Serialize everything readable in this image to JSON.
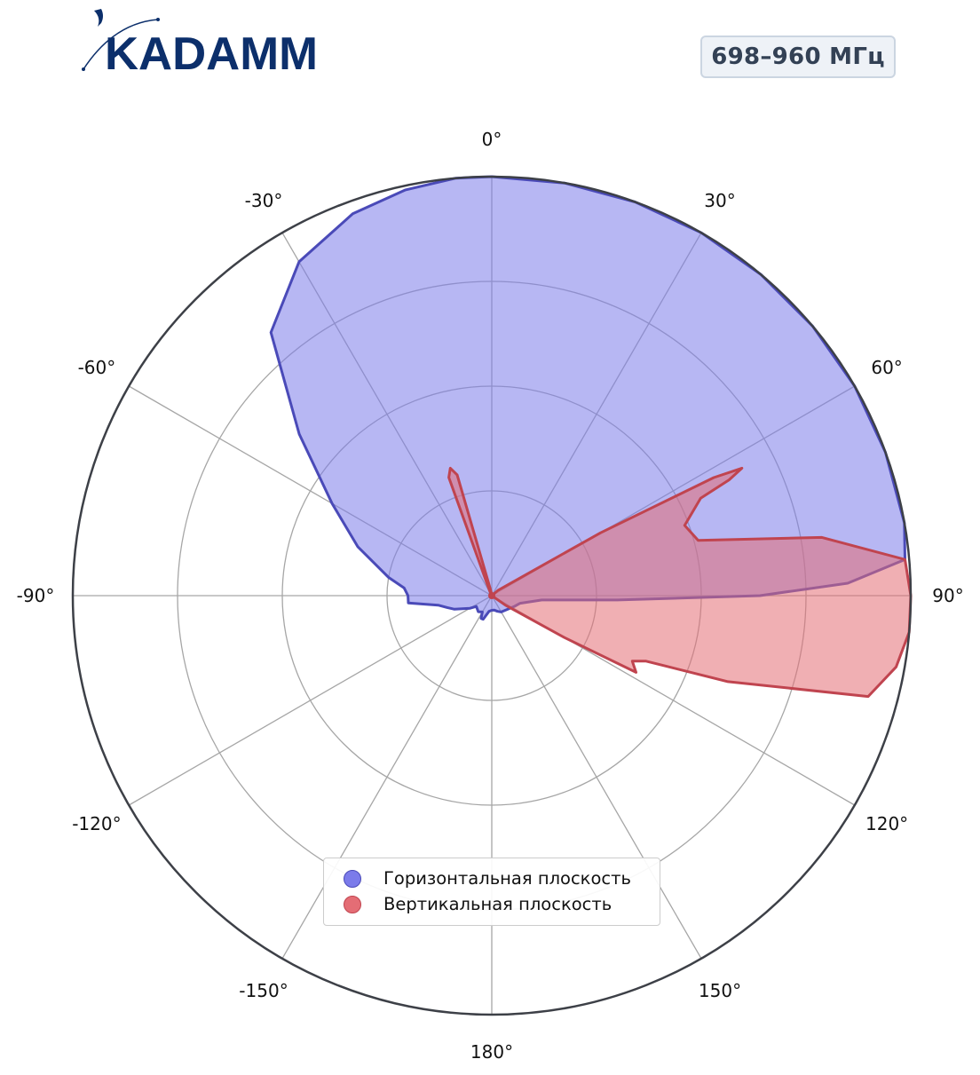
{
  "header": {
    "logo_text": "KADAMM",
    "logo_color": "#0c2f6b",
    "frequency_badge": "698–960 МГц"
  },
  "chart_data": {
    "type": "polar",
    "title": "",
    "theta_direction": "clockwise",
    "theta_zero": "top",
    "angle_tick_labels": [
      "0°",
      "30°",
      "60°",
      "90°",
      "120°",
      "150°",
      "180°",
      "-150°",
      "-120°",
      "-90°",
      "-60°",
      "-30°"
    ],
    "angle_tick_values_deg": [
      0,
      30,
      60,
      90,
      120,
      150,
      180,
      210,
      240,
      270,
      300,
      330
    ],
    "radial_range": [
      0,
      1
    ],
    "radial_grid": [
      0.25,
      0.5,
      0.75,
      1.0
    ],
    "radial_tick_labels": false,
    "grid": true,
    "legend_placement": "lower-center",
    "series": [
      {
        "name": "Горизонтальная плоскость",
        "color": "#4a4ab8",
        "fill": "#7b7bea",
        "points": [
          [
            0,
            1.0
          ],
          [
            10,
            1.0
          ],
          [
            20,
            1.0
          ],
          [
            30,
            1.0
          ],
          [
            40,
            1.0
          ],
          [
            50,
            1.0
          ],
          [
            60,
            1.0
          ],
          [
            70,
            1.0
          ],
          [
            80,
            1.0
          ],
          [
            85,
            0.99
          ],
          [
            88,
            0.85
          ],
          [
            90,
            0.64
          ],
          [
            92,
            0.3
          ],
          [
            95,
            0.12
          ],
          [
            105,
            0.07
          ],
          [
            115,
            0.06
          ],
          [
            130,
            0.05
          ],
          [
            150,
            0.045
          ],
          [
            160,
            0.04
          ],
          [
            170,
            0.035
          ],
          [
            180,
            0.035
          ],
          [
            190,
            0.038
          ],
          [
            200,
            0.06
          ],
          [
            205,
            0.06
          ],
          [
            210,
            0.045
          ],
          [
            220,
            0.05
          ],
          [
            235,
            0.045
          ],
          [
            240,
            0.06
          ],
          [
            250,
            0.095
          ],
          [
            255,
            0.11
          ],
          [
            260,
            0.13
          ],
          [
            265,
            0.2
          ],
          [
            270,
            0.2
          ],
          [
            275,
            0.21
          ],
          [
            280,
            0.25
          ],
          [
            290,
            0.34
          ],
          [
            300,
            0.44
          ],
          [
            310,
            0.6
          ],
          [
            320,
            0.82
          ],
          [
            330,
            0.92
          ],
          [
            340,
            0.97
          ],
          [
            348,
            0.99
          ],
          [
            355,
            1.0
          ],
          [
            360,
            1.0
          ]
        ]
      },
      {
        "name": "Вертикальная плоскость",
        "color": "#c0444f",
        "fill": "#e46d75",
        "points": [
          [
            0,
            0.0
          ],
          [
            40,
            0.0
          ],
          [
            50,
            0.02
          ],
          [
            60,
            0.3
          ],
          [
            62,
            0.6
          ],
          [
            63,
            0.67
          ],
          [
            64,
            0.63
          ],
          [
            65,
            0.55
          ],
          [
            70,
            0.49
          ],
          [
            75,
            0.51
          ],
          [
            80,
            0.8
          ],
          [
            85,
            0.99
          ],
          [
            90,
            1.0
          ],
          [
            95,
            1.0
          ],
          [
            100,
            0.98
          ],
          [
            105,
            0.93
          ],
          [
            110,
            0.6
          ],
          [
            112,
            0.45
          ],
          [
            113,
            0.4
          ],
          [
            115,
            0.37
          ],
          [
            118,
            0.39
          ],
          [
            120,
            0.2
          ],
          [
            125,
            0.04
          ],
          [
            130,
            0.0
          ],
          [
            330,
            0.0
          ],
          [
            335,
            0.01
          ],
          [
            340,
            0.3
          ],
          [
            342,
            0.32
          ],
          [
            344,
            0.3
          ],
          [
            350,
            0.01
          ],
          [
            360,
            0.0
          ]
        ]
      }
    ]
  }
}
